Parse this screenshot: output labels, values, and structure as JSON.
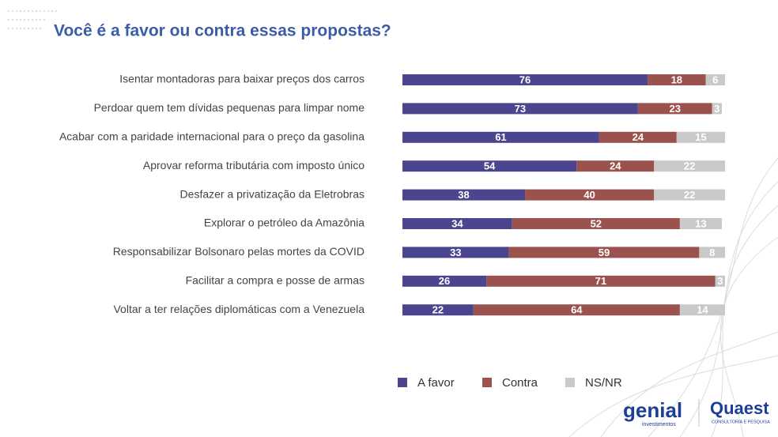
{
  "chart_data": {
    "type": "stacked-bar-horizontal",
    "title": "Você é a favor ou contra essas propostas?",
    "categories": [
      "Isentar montadoras para baixar preços dos carros",
      "Perdoar quem tem dívidas pequenas para limpar nome",
      "Acabar com a paridade internacional para o preço da gasolina",
      "Aprovar reforma tributária com imposto único",
      "Desfazer a privatização da Eletrobras",
      "Explorar o petróleo da Amazônia",
      "Responsabilizar Bolsonaro pelas mortes da COVID",
      "Facilitar a compra e posse de armas",
      "Voltar a ter relações diplomáticas com a Venezuela"
    ],
    "series": [
      {
        "name": "A favor",
        "color": "#4b4590",
        "values": [
          76,
          73,
          61,
          54,
          38,
          34,
          33,
          26,
          22
        ]
      },
      {
        "name": "Contra",
        "color": "#9b524e",
        "values": [
          18,
          23,
          24,
          24,
          40,
          52,
          59,
          71,
          64
        ]
      },
      {
        "name": "NS/NR",
        "color": "#c9c9c9",
        "values": [
          6,
          3,
          15,
          22,
          22,
          13,
          8,
          3,
          14
        ]
      }
    ],
    "xlim": [
      0,
      100
    ],
    "legend": "bottom"
  },
  "logos": {
    "left": "genial",
    "left_sub": "investimentos",
    "right": "Quaest",
    "right_sub": "CONSULTORIA E PESQUISA"
  }
}
